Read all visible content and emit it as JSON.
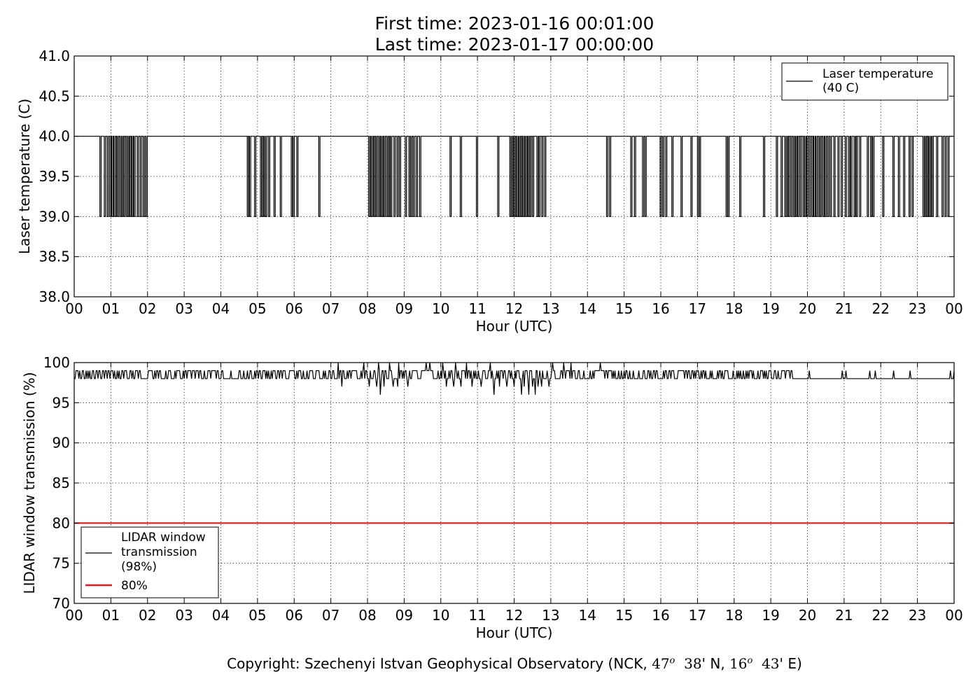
{
  "title_line1": "First time: 2023-01-16 00:01:00",
  "title_line2": "Last time: 2023-01-17 00:00:00",
  "footer": {
    "prefix": "Copyright: Szechenyi Istvan Geophysical Observatory (NCK, ",
    "lat_deg": "47",
    "lat_min": "38",
    "lat_hem": "' N, ",
    "lon_deg": "16",
    "lon_min": "43",
    "lon_hem": "' E)",
    "deg_mark": "o"
  },
  "chart_data": [
    {
      "type": "line",
      "ylabel": "Laser temperature (C)",
      "xlabel": "Hour (UTC)",
      "xlim": [
        0,
        24
      ],
      "ylim": [
        38.0,
        41.0
      ],
      "x_tick_labels": [
        "00",
        "01",
        "02",
        "03",
        "04",
        "05",
        "06",
        "07",
        "08",
        "09",
        "10",
        "11",
        "12",
        "13",
        "14",
        "15",
        "16",
        "17",
        "18",
        "19",
        "20",
        "21",
        "22",
        "23",
        "00"
      ],
      "y_tick_labels": [
        "38.0",
        "38.5",
        "39.0",
        "39.5",
        "40.0",
        "40.5",
        "41.0"
      ],
      "grid": true,
      "legend_position": "top-right",
      "series": [
        {
          "name": "Laser temperature\n(40 C)",
          "color": "#000000",
          "baseline": 40.0,
          "dip_value": 39.0,
          "dip_hours": [
            0.7,
            0.82,
            0.9,
            0.97,
            1.02,
            1.08,
            1.12,
            1.18,
            1.25,
            1.3,
            1.35,
            1.42,
            1.47,
            1.52,
            1.57,
            1.63,
            1.72,
            1.8,
            1.88,
            1.92,
            1.96,
            4.72,
            4.78,
            4.92,
            5.08,
            5.13,
            5.18,
            5.22,
            5.3,
            5.45,
            5.62,
            5.92,
            5.97,
            6.07,
            6.67,
            8.03,
            8.08,
            8.12,
            8.18,
            8.23,
            8.3,
            8.35,
            8.4,
            8.45,
            8.52,
            8.57,
            8.63,
            8.72,
            8.8,
            8.87,
            9.03,
            9.13,
            9.18,
            9.25,
            9.33,
            9.42,
            10.25,
            10.53,
            10.97,
            11.55,
            11.88,
            11.93,
            11.98,
            12.03,
            12.08,
            12.13,
            12.18,
            12.23,
            12.28,
            12.33,
            12.38,
            12.43,
            12.5,
            12.62,
            12.67,
            12.75,
            12.83,
            14.52,
            14.6,
            15.18,
            15.28,
            15.5,
            15.57,
            15.98,
            16.05,
            16.13,
            16.3,
            16.55,
            16.82,
            17.0,
            17.05,
            17.78,
            17.83,
            18.15,
            18.8,
            19.15,
            19.28,
            19.38,
            19.42,
            19.48,
            19.55,
            19.62,
            19.67,
            19.73,
            19.8,
            19.88,
            19.93,
            19.98,
            20.05,
            20.12,
            20.17,
            20.23,
            20.3,
            20.35,
            20.42,
            20.48,
            20.55,
            20.62,
            20.72,
            20.83,
            20.92,
            21.03,
            21.12,
            21.18,
            21.27,
            21.33,
            21.42,
            21.63,
            21.72,
            21.78,
            22.05,
            22.33,
            22.48,
            22.62,
            22.77,
            22.85,
            23.15,
            23.2,
            23.25,
            23.3,
            23.35,
            23.4,
            23.52,
            23.67,
            23.75,
            23.83
          ]
        }
      ]
    },
    {
      "type": "line",
      "ylabel": "LIDAR window transmission (%)",
      "xlabel": "Hour (UTC)",
      "xlim": [
        0,
        24
      ],
      "ylim": [
        70,
        100
      ],
      "x_tick_labels": [
        "00",
        "01",
        "02",
        "03",
        "04",
        "05",
        "06",
        "07",
        "08",
        "09",
        "10",
        "11",
        "12",
        "13",
        "14",
        "15",
        "16",
        "17",
        "18",
        "19",
        "20",
        "21",
        "22",
        "23",
        "00"
      ],
      "y_tick_labels": [
        "70",
        "75",
        "80",
        "85",
        "90",
        "95",
        "100"
      ],
      "grid": true,
      "legend_position": "lower-left",
      "series": [
        {
          "name": "LIDAR window\ntransmission\n(98%)",
          "color": "#000000",
          "baseline": 98,
          "typical_high": 99,
          "dips": [
            [
              7.3,
              97
            ],
            [
              8.05,
              97
            ],
            [
              8.25,
              97
            ],
            [
              8.35,
              96
            ],
            [
              8.45,
              97
            ],
            [
              8.7,
              97
            ],
            [
              8.83,
              97
            ],
            [
              9.1,
              97
            ],
            [
              10.15,
              97
            ],
            [
              10.35,
              97
            ],
            [
              10.55,
              97
            ],
            [
              10.85,
              97
            ],
            [
              11.1,
              97
            ],
            [
              11.45,
              96
            ],
            [
              11.6,
              97
            ],
            [
              11.8,
              97
            ],
            [
              12.0,
              97
            ],
            [
              12.2,
              96
            ],
            [
              12.28,
              97
            ],
            [
              12.4,
              96
            ],
            [
              12.5,
              97
            ],
            [
              12.58,
              96
            ],
            [
              12.65,
              97
            ],
            [
              12.75,
              97
            ],
            [
              12.95,
              97
            ]
          ],
          "peaks": [
            7.2,
            7.9,
            8.3,
            8.6,
            8.7,
            8.85,
            9.6,
            9.7,
            10.05,
            10.4,
            10.7,
            11.1,
            11.35,
            13.05,
            13.35,
            13.55,
            14.35
          ]
        },
        {
          "name": "80%",
          "color": "#e31a1c",
          "constant": 80
        }
      ]
    }
  ]
}
